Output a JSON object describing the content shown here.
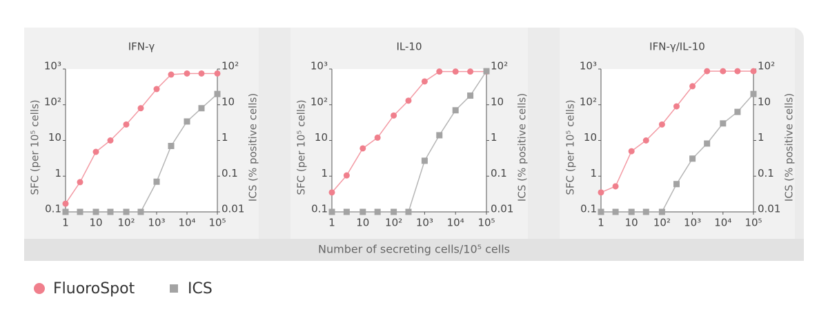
{
  "chart_data": [
    {
      "type": "line",
      "title": "IFN-γ",
      "ylabel": "SFC (per 10⁵ cells)",
      "y2label": "ICS (% positive cells)",
      "log_x": true,
      "log_y": true,
      "x": [
        1,
        3,
        10,
        30,
        100,
        300,
        1000,
        3000,
        10000,
        30000,
        100000
      ],
      "series": [
        {
          "name": "FluoroSpot",
          "color": "#f07f8c",
          "marker": "circle",
          "axis": "y",
          "values": [
            0.17,
            0.68,
            4.8,
            10,
            28,
            80,
            275,
            700,
            750,
            750,
            750
          ]
        },
        {
          "name": "ICS",
          "color": "#a3a3a3",
          "marker": "square",
          "axis": "y2",
          "values": [
            0.01,
            0.01,
            0.01,
            0.01,
            0.01,
            0.01,
            0.07,
            0.7,
            3.4,
            8,
            20
          ]
        }
      ],
      "xlim": [
        1,
        100000
      ],
      "xticks": [
        1,
        10,
        {
          "value": 100,
          "label": "10²"
        },
        {
          "value": 1000,
          "label": "10³"
        },
        {
          "value": 10000,
          "label": "10⁴"
        },
        {
          "value": 100000,
          "label": "10⁵"
        }
      ],
      "ylim": [
        0.1,
        1000
      ],
      "yticks": [
        0.1,
        1,
        10,
        {
          "value": 100,
          "label": "10²"
        },
        {
          "value": 1000,
          "label": "10³"
        }
      ],
      "y2lim": [
        0.01,
        100
      ],
      "y2ticks": [
        0.01,
        0.1,
        1,
        10,
        {
          "value": 100,
          "label": "10²"
        }
      ]
    },
    {
      "type": "line",
      "title": "IL-10",
      "ylabel": "SFC (per 10⁵ cells)",
      "y2label": "ICS (% positive cells)",
      "log_x": true,
      "log_y": true,
      "x": [
        1,
        3,
        10,
        30,
        100,
        300,
        1000,
        3000,
        10000,
        30000,
        100000
      ],
      "series": [
        {
          "name": "FluoroSpot",
          "color": "#f07f8c",
          "marker": "circle",
          "axis": "y",
          "values": [
            0.35,
            1.05,
            6,
            12,
            50,
            130,
            450,
            850,
            850,
            850,
            850
          ]
        },
        {
          "name": "ICS",
          "color": "#a3a3a3",
          "marker": "square",
          "axis": "y2",
          "values": [
            0.01,
            0.01,
            0.01,
            0.01,
            0.01,
            0.01,
            0.27,
            1.4,
            7,
            18,
            87
          ]
        }
      ],
      "xlim": [
        1,
        100000
      ],
      "xticks": [
        1,
        10,
        {
          "value": 100,
          "label": "10²"
        },
        {
          "value": 1000,
          "label": "10³"
        },
        {
          "value": 10000,
          "label": "10⁴"
        },
        {
          "value": 100000,
          "label": "10⁵"
        }
      ],
      "ylim": [
        0.1,
        1000
      ],
      "yticks": [
        0.1,
        1,
        10,
        {
          "value": 100,
          "label": "10²"
        },
        {
          "value": 1000,
          "label": "10³"
        }
      ],
      "y2lim": [
        0.01,
        100
      ],
      "y2ticks": [
        0.01,
        0.1,
        1,
        10,
        {
          "value": 100,
          "label": "10²"
        }
      ]
    },
    {
      "type": "line",
      "title": "IFN-γ/IL-10",
      "ylabel": "SFC (per 10⁵ cells)",
      "y2label": "ICS (% positive cells)",
      "log_x": true,
      "log_y": true,
      "x": [
        1,
        3,
        10,
        30,
        100,
        300,
        1000,
        3000,
        10000,
        30000,
        100000
      ],
      "series": [
        {
          "name": "FluoroSpot",
          "color": "#f07f8c",
          "marker": "circle",
          "axis": "y",
          "values": [
            0.35,
            0.52,
            5,
            10,
            28,
            90,
            330,
            870,
            870,
            870,
            870
          ]
        },
        {
          "name": "ICS",
          "color": "#a3a3a3",
          "marker": "square",
          "axis": "y2",
          "values": [
            0.01,
            0.01,
            0.01,
            0.01,
            0.01,
            0.06,
            0.31,
            0.82,
            3,
            6.3,
            20
          ]
        }
      ],
      "xlim": [
        1,
        100000
      ],
      "xticks": [
        1,
        10,
        {
          "value": 100,
          "label": "10²"
        },
        {
          "value": 1000,
          "label": "10³"
        },
        {
          "value": 10000,
          "label": "10⁴"
        },
        {
          "value": 100000,
          "label": "10⁵"
        }
      ],
      "ylim": [
        0.1,
        1000
      ],
      "yticks": [
        0.1,
        1,
        10,
        {
          "value": 100,
          "label": "10²"
        },
        {
          "value": 1000,
          "label": "10³"
        }
      ],
      "y2lim": [
        0.01,
        100
      ],
      "y2ticks": [
        0.01,
        0.1,
        1,
        10,
        {
          "value": 100,
          "label": "10²"
        }
      ]
    }
  ],
  "shared_xlabel": "Number of secreting cells/10⁵ cells"
}
